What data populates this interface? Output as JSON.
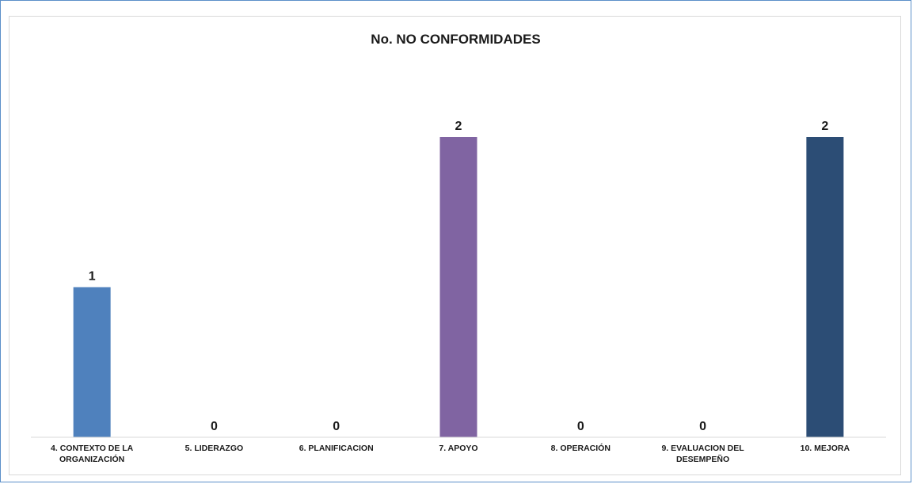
{
  "chart_data": {
    "type": "bar",
    "title": "No. NO CONFORMIDADES",
    "xlabel": "",
    "ylabel": "",
    "categories": [
      [
        "4. CONTEXTO DE LA",
        "ORGANIZACIÓN"
      ],
      [
        "5. LIDERAZGO"
      ],
      [
        "6. PLANIFICACION"
      ],
      [
        "7. APOYO"
      ],
      [
        "8. OPERACIÓN"
      ],
      [
        "9. EVALUACION DEL",
        "DESEMPEÑO"
      ],
      [
        "10. MEJORA"
      ]
    ],
    "values": [
      1,
      0,
      0,
      2,
      0,
      0,
      2
    ],
    "ylim": [
      0,
      2
    ],
    "grid": false,
    "legend": "none",
    "data_labels": true,
    "colors": [
      "#4f81bd",
      "#4f81bd",
      "#4f81bd",
      "#8064a2",
      "#4f81bd",
      "#4f81bd",
      "#2c4d75"
    ]
  }
}
